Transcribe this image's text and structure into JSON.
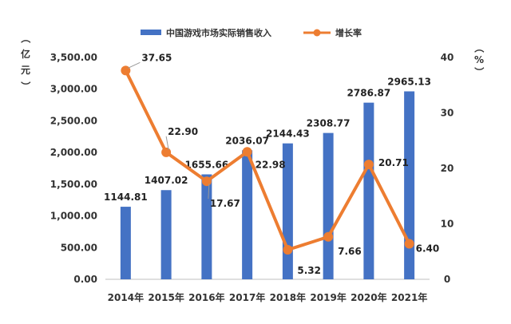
{
  "chart_data": {
    "type": "bar+line",
    "categories": [
      "2014年",
      "2015年",
      "2016年",
      "2017年",
      "2018年",
      "2019年",
      "2020年",
      "2021年"
    ],
    "series": [
      {
        "name": "中国游戏市场实际销售收入",
        "type": "bar",
        "axis": "left",
        "values": [
          1144.81,
          1407.02,
          1655.66,
          2036.07,
          2144.43,
          2308.77,
          2786.87,
          2965.13
        ],
        "labels": [
          "1144.81",
          "1407.02",
          "1655.66",
          "2036.07",
          "2144.43",
          "2308.77",
          "2786.87",
          "2965.13"
        ],
        "color": "#4472C4"
      },
      {
        "name": "增长率",
        "type": "line",
        "axis": "right",
        "values": [
          37.65,
          22.9,
          17.67,
          22.98,
          5.32,
          7.66,
          20.71,
          6.4
        ],
        "labels": [
          "37.65",
          "22.90",
          "17.67",
          "22.98",
          "5.32",
          "7.66",
          "20.71",
          "6.40"
        ],
        "color": "#ED7D31"
      }
    ],
    "y_left": {
      "label": "（亿元）",
      "range": [
        0,
        3500
      ],
      "ticks": [
        "0.00",
        "500.00",
        "1,000.00",
        "1,500.00",
        "2,000.00",
        "2,500.00",
        "3,000.00",
        "3,500.00"
      ]
    },
    "y_right": {
      "label": "（%）",
      "range": [
        0,
        40
      ],
      "ticks": [
        "0",
        "10",
        "20",
        "30",
        "40"
      ]
    },
    "legend_position": "top",
    "grid": false
  }
}
